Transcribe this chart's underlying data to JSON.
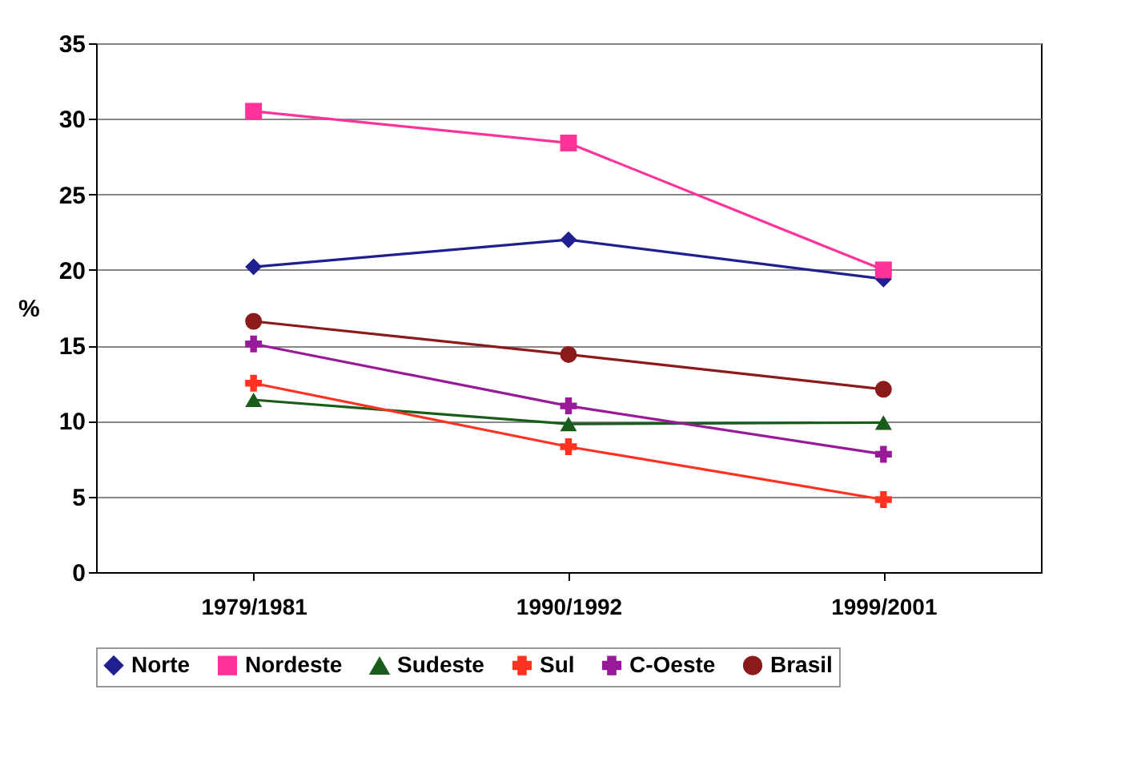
{
  "chart_data": {
    "type": "line",
    "ylabel": "%",
    "categories": [
      "1979/1981",
      "1990/1992",
      "1999/2001"
    ],
    "series": [
      {
        "name": "Norte",
        "color": "#1f1f8f",
        "marker": "diamond",
        "values": [
          20.2,
          22.0,
          19.4
        ]
      },
      {
        "name": "Nordeste",
        "color": "#ff3399",
        "marker": "square",
        "values": [
          30.5,
          28.4,
          20.0
        ]
      },
      {
        "name": "Sudeste",
        "color": "#1a5c1a",
        "marker": "triangle",
        "values": [
          11.4,
          9.8,
          9.9
        ]
      },
      {
        "name": "Sul",
        "color": "#ff3322",
        "marker": "cross",
        "values": [
          12.5,
          8.3,
          4.8
        ]
      },
      {
        "name": "C-Oeste",
        "color": "#991a99",
        "marker": "cross",
        "values": [
          15.1,
          11.0,
          7.8
        ]
      },
      {
        "name": "Brasil",
        "color": "#8b1a1a",
        "marker": "circle",
        "values": [
          16.6,
          14.4,
          12.1
        ]
      }
    ],
    "ylim": [
      0,
      35
    ],
    "yticks": [
      0,
      5,
      10,
      15,
      20,
      25,
      30,
      35
    ],
    "grid": "y",
    "legend": "bottom",
    "line_style": "solid"
  }
}
